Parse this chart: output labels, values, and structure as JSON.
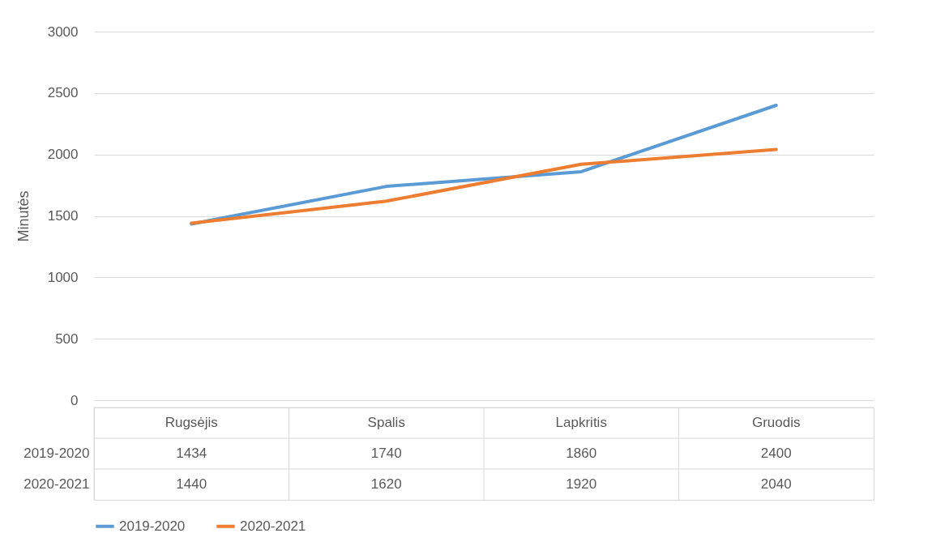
{
  "chart_data": {
    "type": "line",
    "ylabel": "Minutės",
    "categories": [
      "Rugsėjis",
      "Spalis",
      "Lapkritis",
      "Gruodis"
    ],
    "series": [
      {
        "name": "2019-2020",
        "color": "#5b9bd5",
        "values": [
          1434,
          1740,
          1860,
          2400
        ]
      },
      {
        "name": "2020-2021",
        "color": "#ed7d31",
        "values": [
          1440,
          1620,
          1920,
          2040
        ]
      }
    ],
    "ylim": [
      0,
      3000
    ],
    "yticks": [
      0,
      500,
      1000,
      1500,
      2000,
      2500,
      3000
    ],
    "grid": "y",
    "legend": "bottom",
    "data_labels": true,
    "marker": "none",
    "line_style": "solid"
  }
}
